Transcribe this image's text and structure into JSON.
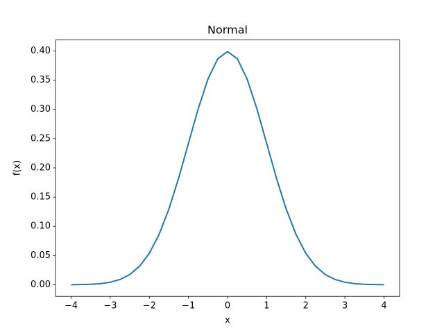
{
  "chart_data": {
    "type": "line",
    "title": "Normal",
    "xlabel": "x",
    "ylabel": "f(x)",
    "x": [
      -4,
      -3.75,
      -3.5,
      -3.25,
      -3,
      -2.75,
      -2.5,
      -2.25,
      -2,
      -1.75,
      -1.5,
      -1.25,
      -1,
      -0.75,
      -0.5,
      -0.25,
      0,
      0.25,
      0.5,
      0.75,
      1,
      1.25,
      1.5,
      1.75,
      2,
      2.25,
      2.5,
      2.75,
      3,
      3.25,
      3.5,
      3.75,
      4
    ],
    "series": [
      {
        "color": "#1f77b4",
        "values": [
          0.0001,
          0.0004,
          0.0009,
          0.002,
          0.0044,
          0.0091,
          0.0175,
          0.0317,
          0.054,
          0.0863,
          0.1295,
          0.1826,
          0.242,
          0.3011,
          0.3521,
          0.3867,
          0.3989,
          0.3867,
          0.3521,
          0.3011,
          0.242,
          0.1826,
          0.1295,
          0.0863,
          0.054,
          0.0317,
          0.0175,
          0.0091,
          0.0044,
          0.002,
          0.0009,
          0.0004,
          0.0001
        ]
      }
    ],
    "xlim": [
      -4.4,
      4.4
    ],
    "ylim": [
      -0.0198,
      0.4188
    ],
    "xticks": [
      {
        "value": -4,
        "label": "−4"
      },
      {
        "value": -3,
        "label": "−3"
      },
      {
        "value": -2,
        "label": "−2"
      },
      {
        "value": -1,
        "label": "−1"
      },
      0,
      1,
      2,
      3,
      4
    ],
    "yticks": [
      {
        "value": 0,
        "label": "0.00"
      },
      {
        "value": 0.05,
        "label": "0.05"
      },
      {
        "value": 0.1,
        "label": "0.10"
      },
      {
        "value": 0.15,
        "label": "0.15"
      },
      {
        "value": 0.2,
        "label": "0.20"
      },
      {
        "value": 0.25,
        "label": "0.25"
      },
      {
        "value": 0.3,
        "label": "0.30"
      },
      {
        "value": 0.35,
        "label": "0.35"
      },
      {
        "value": 0.4,
        "label": "0.40"
      }
    ]
  }
}
